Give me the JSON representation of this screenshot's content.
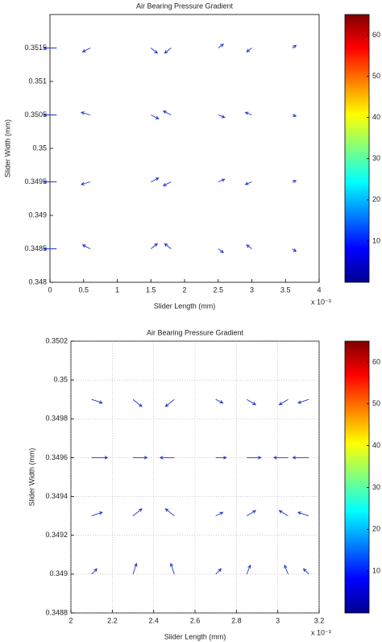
{
  "chart_data": [
    {
      "type": "quiver",
      "title": "Air Bearing Pressure Gradient",
      "xlabel": "Slider Length (mm)",
      "ylabel": "Slider Width (mm)",
      "x_multiplier": "x 10⁻³",
      "xlim": [
        0,
        4
      ],
      "xticks": [
        0,
        0.5,
        1,
        1.5,
        2,
        2.5,
        3,
        3.5,
        4
      ],
      "ylim": [
        0.348,
        0.352
      ],
      "yticks": [
        0.348,
        0.3485,
        0.349,
        0.3495,
        0.35,
        0.3505,
        0.351,
        0.3515
      ],
      "grid": false,
      "color": "#2233cc",
      "x": [
        0.1,
        0.6,
        1.5,
        1.8,
        2.5,
        3,
        3.6,
        0.1,
        0.6,
        1.5,
        1.8,
        2.5,
        3,
        3.6,
        0.1,
        0.6,
        1.5,
        1.8,
        2.5,
        3,
        3.6,
        0.1,
        0.6,
        1.5,
        1.8,
        2.5,
        3,
        3.6
      ],
      "y": [
        0.3485,
        0.3485,
        0.3485,
        0.3485,
        0.3485,
        0.3485,
        0.3485,
        0.3495,
        0.3495,
        0.3495,
        0.3495,
        0.3495,
        0.3495,
        0.3495,
        0.3505,
        0.3505,
        0.3505,
        0.3505,
        0.3505,
        0.3505,
        0.3505,
        0.3515,
        0.3515,
        0.3515,
        0.3515,
        0.3515,
        0.3515,
        0.3515
      ],
      "u": [
        -1,
        -0.6,
        0.5,
        -0.5,
        0.4,
        -0.4,
        0.3,
        -1,
        -0.7,
        0.6,
        -0.6,
        0.5,
        -0.5,
        0.3,
        -1,
        -0.7,
        0.6,
        -0.6,
        0.5,
        -0.5,
        0.3,
        -1,
        -0.6,
        0.5,
        -0.5,
        0.4,
        -0.4,
        0.3
      ],
      "v": [
        0,
        0.3,
        0.4,
        0.4,
        -0.3,
        0.3,
        -0.2,
        0,
        -0.2,
        0.3,
        -0.3,
        0.2,
        -0.2,
        0.1,
        0,
        0.2,
        -0.3,
        0.3,
        -0.2,
        0.2,
        -0.1,
        0,
        -0.3,
        -0.4,
        -0.4,
        0.3,
        -0.3,
        0.2
      ],
      "clim": [
        0,
        65
      ],
      "cticks": [
        10,
        20,
        30,
        40,
        50,
        60
      ]
    },
    {
      "type": "quiver",
      "title": "Air Bearing Pressure Gradient",
      "xlabel": "Slider Length (mm)",
      "ylabel": "Slider Width (mm)",
      "x_multiplier": "x 10⁻³",
      "xlim": [
        2,
        3.2
      ],
      "xticks": [
        2,
        2.2,
        2.4,
        2.6,
        2.8,
        3,
        3.2
      ],
      "ylim": [
        0.3488,
        0.3502
      ],
      "yticks": [
        0.3488,
        0.349,
        0.3492,
        0.3494,
        0.3496,
        0.3498,
        0.35,
        0.3502
      ],
      "grid": true,
      "color": "#2233cc",
      "x": [
        2.1,
        2.3,
        2.5,
        2.7,
        2.85,
        3.05,
        3.15,
        2.1,
        2.3,
        2.5,
        2.7,
        2.85,
        3.05,
        3.15,
        2.1,
        2.3,
        2.5,
        2.7,
        2.85,
        3.05,
        3.15,
        2.1,
        2.3,
        2.5,
        2.7,
        2.85,
        3.05,
        3.15
      ],
      "y": [
        0.349,
        0.349,
        0.349,
        0.349,
        0.349,
        0.349,
        0.349,
        0.3493,
        0.3493,
        0.3493,
        0.3493,
        0.3493,
        0.3493,
        0.3493,
        0.3496,
        0.3496,
        0.3496,
        0.3496,
        0.3496,
        0.3496,
        0.3496,
        0.3499,
        0.3499,
        0.3499,
        0.3499,
        0.3499,
        0.3499,
        0.3499
      ],
      "u": [
        0.3,
        0.2,
        -0.2,
        0.3,
        0.2,
        -0.2,
        -0.3,
        0.6,
        0.5,
        -0.5,
        0.4,
        0.5,
        -0.5,
        -0.6,
        0.9,
        0.8,
        -0.8,
        0.6,
        0.8,
        -0.8,
        -0.9,
        0.6,
        0.5,
        -0.5,
        0.4,
        0.5,
        -0.5,
        -0.6
      ],
      "v": [
        0.3,
        0.6,
        0.6,
        0.3,
        0.5,
        0.5,
        0.3,
        0.2,
        0.4,
        0.4,
        0.2,
        0.3,
        0.3,
        0.2,
        0,
        0,
        0,
        0,
        0,
        0,
        0,
        -0.2,
        -0.4,
        -0.4,
        -0.2,
        -0.3,
        -0.3,
        -0.2
      ],
      "clim": [
        0,
        65
      ],
      "cticks": [
        10,
        20,
        30,
        40,
        50,
        60
      ]
    }
  ]
}
